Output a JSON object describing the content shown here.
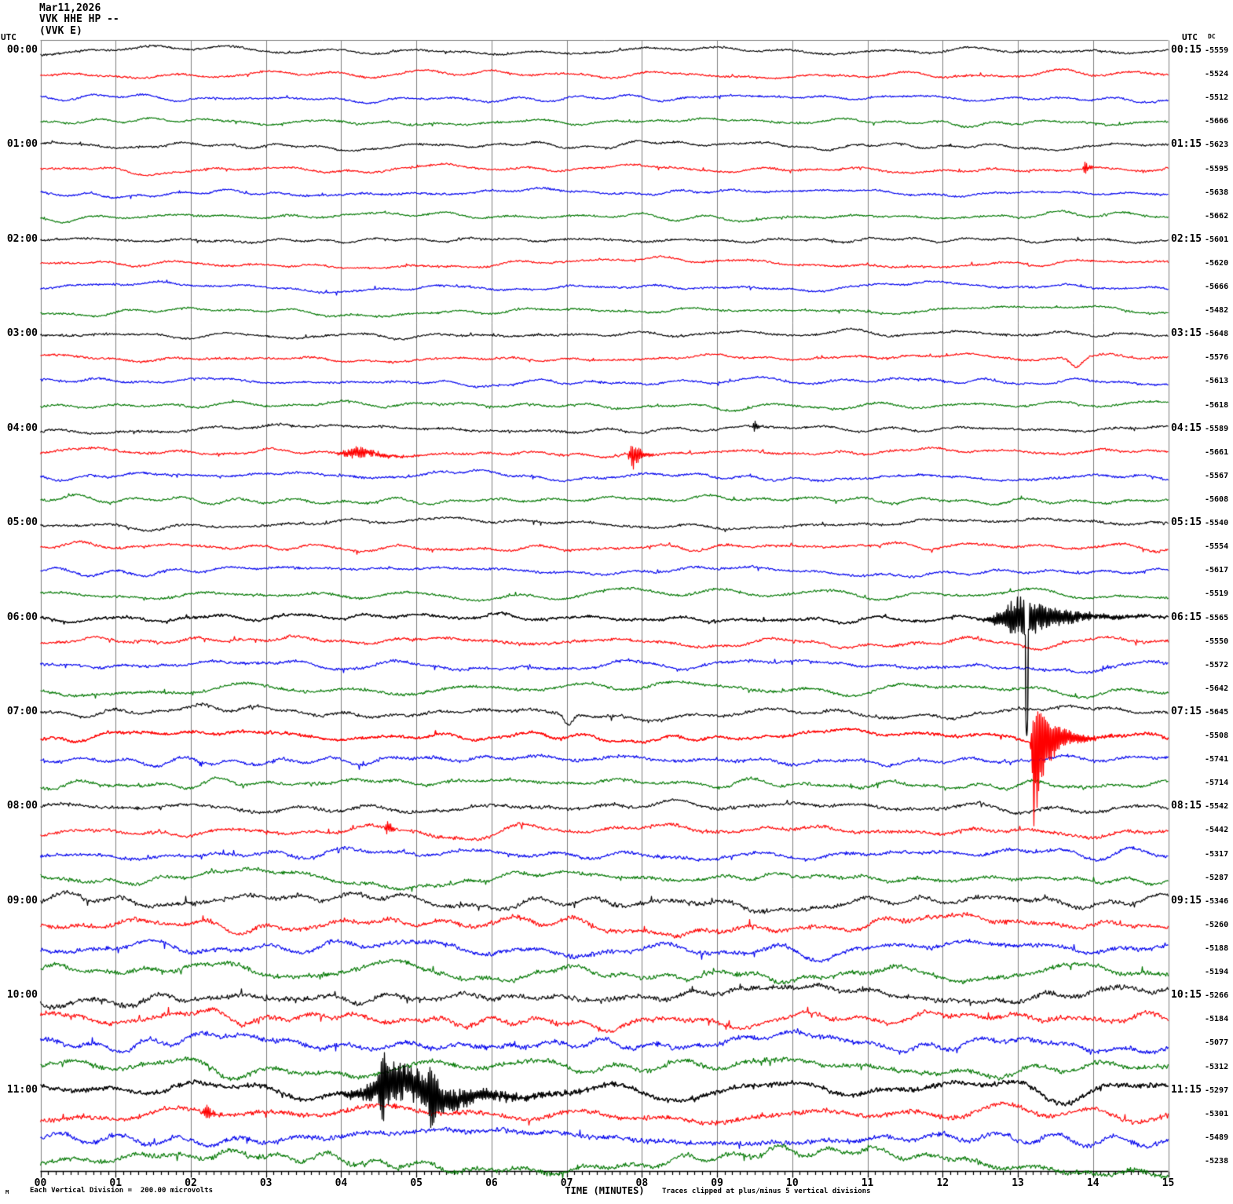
{
  "header": {
    "date": "Mar11,2026",
    "channel": "VVK HHE HP --",
    "station": "(VVK E)"
  },
  "axis_headers": {
    "utc_left": "UTC",
    "utc_right": "UTC",
    "dc": "DC"
  },
  "footer": {
    "watermark": "M",
    "division_note": "Each Vertical Division =  200.00 microvolts",
    "axis_title": "TIME (MINUTES)",
    "clip_note": "Traces clipped at plus/minus 5 vertical divisions"
  },
  "colors": {
    "black": "#000000",
    "red": "#ff0000",
    "blue": "#0000ee",
    "green": "#007700",
    "grid": "#808080",
    "axis": "#000000"
  },
  "chart_data": {
    "type": "line",
    "title": "Mar11,2026 VVK HHE HP -- (VVK E)",
    "xlabel": "TIME (MINUTES)",
    "x_range": [
      0,
      15
    ],
    "x_ticks": [
      "00",
      "01",
      "02",
      "03",
      "04",
      "05",
      "06",
      "07",
      "08",
      "09",
      "10",
      "11",
      "12",
      "13",
      "14",
      "15"
    ],
    "minutes_per_line": 15,
    "microvolts_per_division": "200.00",
    "clip_divisions": 5,
    "grid": "vertical-only",
    "rows": [
      {
        "start": "00:00",
        "left_label": "00:00",
        "right_label": "00:15",
        "dc": "-5559",
        "color": "black",
        "level": 1.0,
        "events": []
      },
      {
        "start": "00:15",
        "left_label": null,
        "right_label": null,
        "dc": "-5524",
        "color": "red",
        "level": 1.0,
        "events": []
      },
      {
        "start": "00:30",
        "left_label": null,
        "right_label": null,
        "dc": "-5512",
        "color": "blue",
        "level": 1.0,
        "events": []
      },
      {
        "start": "00:45",
        "left_label": null,
        "right_label": null,
        "dc": "-5666",
        "color": "green",
        "level": 1.0,
        "events": []
      },
      {
        "start": "01:00",
        "left_label": "01:00",
        "right_label": "01:15",
        "dc": "-5623",
        "color": "black",
        "level": 1.0,
        "events": []
      },
      {
        "start": "01:15",
        "left_label": null,
        "right_label": null,
        "dc": "-5595",
        "color": "red",
        "level": 1.0,
        "events": [
          {
            "type": "burst",
            "t": 13.9,
            "attack": 0.03,
            "decay": 0.05,
            "amp": 10
          }
        ]
      },
      {
        "start": "01:30",
        "left_label": null,
        "right_label": null,
        "dc": "-5638",
        "color": "blue",
        "level": 1.0,
        "events": []
      },
      {
        "start": "01:45",
        "left_label": null,
        "right_label": null,
        "dc": "-5662",
        "color": "green",
        "level": 1.0,
        "events": []
      },
      {
        "start": "02:00",
        "left_label": "02:00",
        "right_label": "02:15",
        "dc": "-5601",
        "color": "black",
        "level": 1.0,
        "events": []
      },
      {
        "start": "02:15",
        "left_label": null,
        "right_label": null,
        "dc": "-5620",
        "color": "red",
        "level": 1.0,
        "events": []
      },
      {
        "start": "02:30",
        "left_label": null,
        "right_label": null,
        "dc": "-5666",
        "color": "blue",
        "level": 1.0,
        "events": []
      },
      {
        "start": "02:45",
        "left_label": null,
        "right_label": null,
        "dc": "-5482",
        "color": "green",
        "level": 1.0,
        "events": []
      },
      {
        "start": "03:00",
        "left_label": "03:00",
        "right_label": "03:15",
        "dc": "-5648",
        "color": "black",
        "level": 1.05,
        "events": []
      },
      {
        "start": "03:15",
        "left_label": null,
        "right_label": null,
        "dc": "-5576",
        "color": "red",
        "level": 1.05,
        "events": [
          {
            "type": "pulse",
            "t": 13.78,
            "w": 0.07,
            "amp": 12
          }
        ]
      },
      {
        "start": "03:30",
        "left_label": null,
        "right_label": null,
        "dc": "-5613",
        "color": "blue",
        "level": 1.05,
        "events": []
      },
      {
        "start": "03:45",
        "left_label": null,
        "right_label": null,
        "dc": "-5618",
        "color": "green",
        "level": 1.05,
        "events": []
      },
      {
        "start": "04:00",
        "left_label": "04:00",
        "right_label": "04:15",
        "dc": "-5589",
        "color": "black",
        "level": 1.15,
        "events": [
          {
            "type": "burst",
            "t": 9.5,
            "attack": 0.02,
            "decay": 0.03,
            "amp": 12
          }
        ]
      },
      {
        "start": "04:15",
        "left_label": null,
        "right_label": null,
        "dc": "-5661",
        "color": "red",
        "level": 1.15,
        "events": [
          {
            "type": "burst",
            "t": 4.25,
            "attack": 0.25,
            "decay": 0.3,
            "amp": 8
          },
          {
            "type": "burst",
            "t": 7.87,
            "attack": 0.04,
            "decay": 0.1,
            "amp": 22
          }
        ]
      },
      {
        "start": "04:30",
        "left_label": null,
        "right_label": null,
        "dc": "-5567",
        "color": "blue",
        "level": 1.15,
        "events": []
      },
      {
        "start": "04:45",
        "left_label": null,
        "right_label": null,
        "dc": "-5608",
        "color": "green",
        "level": 1.15,
        "events": []
      },
      {
        "start": "05:00",
        "left_label": "05:00",
        "right_label": "05:15",
        "dc": "-5540",
        "color": "black",
        "level": 1.2,
        "events": []
      },
      {
        "start": "05:15",
        "left_label": null,
        "right_label": null,
        "dc": "-5554",
        "color": "red",
        "level": 1.2,
        "events": []
      },
      {
        "start": "05:30",
        "left_label": null,
        "right_label": null,
        "dc": "-5617",
        "color": "blue",
        "level": 1.2,
        "events": []
      },
      {
        "start": "05:45",
        "left_label": null,
        "right_label": null,
        "dc": "-5519",
        "color": "green",
        "level": 1.2,
        "events": []
      },
      {
        "start": "06:00",
        "left_label": "06:00",
        "right_label": "06:15",
        "dc": "-5565",
        "color": "black",
        "level": 1.4,
        "events": [
          {
            "type": "burst",
            "t": 13.05,
            "attack": 0.3,
            "decay": 0.5,
            "amp": 30
          },
          {
            "type": "pulse",
            "t": 13.12,
            "w": 0.012,
            "amp": 170
          }
        ]
      },
      {
        "start": "06:15",
        "left_label": null,
        "right_label": null,
        "dc": "-5550",
        "color": "red",
        "level": 1.4,
        "events": []
      },
      {
        "start": "06:30",
        "left_label": null,
        "right_label": null,
        "dc": "-5572",
        "color": "blue",
        "level": 1.4,
        "events": []
      },
      {
        "start": "06:45",
        "left_label": null,
        "right_label": null,
        "dc": "-5642",
        "color": "green",
        "level": 1.4,
        "events": []
      },
      {
        "start": "07:00",
        "left_label": "07:00",
        "right_label": "07:15",
        "dc": "-5645",
        "color": "black",
        "level": 1.5,
        "events": [
          {
            "type": "pulse",
            "t": 7.02,
            "w": 0.05,
            "amp": 14
          }
        ]
      },
      {
        "start": "07:15",
        "left_label": null,
        "right_label": null,
        "dc": "-5508",
        "color": "red",
        "level": 1.5,
        "events": [
          {
            "type": "quake",
            "t": 13.22,
            "attack": 0.03,
            "decay": 0.12,
            "amp": 118
          },
          {
            "type": "burst",
            "t": 13.32,
            "attack": 0.08,
            "decay": 0.3,
            "amp": 26
          }
        ]
      },
      {
        "start": "07:30",
        "left_label": null,
        "right_label": null,
        "dc": "-5741",
        "color": "blue",
        "level": 1.5,
        "events": []
      },
      {
        "start": "07:45",
        "left_label": null,
        "right_label": null,
        "dc": "-5714",
        "color": "green",
        "level": 1.5,
        "events": []
      },
      {
        "start": "08:00",
        "left_label": "08:00",
        "right_label": "08:15",
        "dc": "-5542",
        "color": "black",
        "level": 1.65,
        "events": []
      },
      {
        "start": "08:15",
        "left_label": null,
        "right_label": null,
        "dc": "-5442",
        "color": "red",
        "level": 1.65,
        "events": [
          {
            "type": "burst",
            "t": 4.62,
            "attack": 0.03,
            "decay": 0.05,
            "amp": 12
          },
          {
            "type": "pulse",
            "t": 5.75,
            "w": 0.3,
            "amp": 12
          }
        ]
      },
      {
        "start": "08:30",
        "left_label": null,
        "right_label": null,
        "dc": "-5317",
        "color": "blue",
        "level": 1.65,
        "events": []
      },
      {
        "start": "08:45",
        "left_label": null,
        "right_label": null,
        "dc": "-5287",
        "color": "green",
        "level": 1.65,
        "events": []
      },
      {
        "start": "09:00",
        "left_label": "09:00",
        "right_label": "09:15",
        "dc": "-5346",
        "color": "black",
        "level": 2.2,
        "events": []
      },
      {
        "start": "09:15",
        "left_label": null,
        "right_label": null,
        "dc": "-5260",
        "color": "red",
        "level": 2.2,
        "events": []
      },
      {
        "start": "09:30",
        "left_label": null,
        "right_label": null,
        "dc": "-5188",
        "color": "blue",
        "level": 2.2,
        "events": []
      },
      {
        "start": "09:45",
        "left_label": null,
        "right_label": null,
        "dc": "-5194",
        "color": "green",
        "level": 2.2,
        "events": []
      },
      {
        "start": "10:00",
        "left_label": "10:00",
        "right_label": "10:15",
        "dc": "-5266",
        "color": "black",
        "level": 2.35,
        "events": []
      },
      {
        "start": "10:15",
        "left_label": null,
        "right_label": null,
        "dc": "-5184",
        "color": "red",
        "level": 2.35,
        "events": []
      },
      {
        "start": "10:30",
        "left_label": null,
        "right_label": null,
        "dc": "-5077",
        "color": "blue",
        "level": 2.35,
        "events": []
      },
      {
        "start": "10:45",
        "left_label": null,
        "right_label": null,
        "dc": "-5312",
        "color": "green",
        "level": 2.35,
        "events": []
      },
      {
        "start": "11:00",
        "left_label": "11:00",
        "right_label": "11:15",
        "dc": "-5297",
        "color": "black",
        "level": 2.35,
        "events": [
          {
            "type": "burst",
            "t": 4.9,
            "attack": 0.6,
            "decay": 0.85,
            "amp": 26
          },
          {
            "type": "burst",
            "t": 4.55,
            "attack": 0.03,
            "decay": 0.05,
            "amp": 50
          },
          {
            "type": "burst",
            "t": 5.2,
            "attack": 0.04,
            "decay": 0.06,
            "amp": 42
          }
        ]
      },
      {
        "start": "11:15",
        "left_label": null,
        "right_label": null,
        "dc": "-5301",
        "color": "red",
        "level": 2.35,
        "events": [
          {
            "type": "burst",
            "t": 2.2,
            "attack": 0.03,
            "decay": 0.06,
            "amp": 18
          }
        ]
      },
      {
        "start": "11:30",
        "left_label": null,
        "right_label": null,
        "dc": "-5489",
        "color": "blue",
        "level": 2.35,
        "events": []
      },
      {
        "start": "11:45",
        "left_label": null,
        "right_label": null,
        "dc": "-5238",
        "color": "green",
        "level": 2.35,
        "events": []
      }
    ]
  }
}
